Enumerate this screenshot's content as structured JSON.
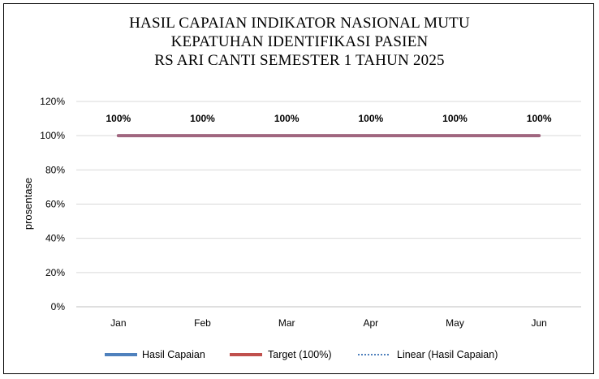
{
  "chart_data": {
    "type": "line",
    "title_lines": [
      "HASIL CAPAIAN INDIKATOR NASIONAL MUTU",
      "KEPATUHAN IDENTIFIKASI PASIEN",
      "RS ARI CANTI SEMESTER 1 TAHUN 2025"
    ],
    "ylabel": "prosentase",
    "xlabel": "",
    "categories": [
      "Jan",
      "Feb",
      "Mar",
      "Apr",
      "May",
      "Jun"
    ],
    "y_ticks": [
      "0%",
      "20%",
      "40%",
      "60%",
      "80%",
      "100%",
      "120%"
    ],
    "ylim": [
      0,
      120
    ],
    "grid": true,
    "legend_position": "bottom",
    "series": [
      {
        "name": "Hasil Capaian",
        "values": [
          100,
          100,
          100,
          100,
          100,
          100
        ],
        "color": "#4F81BD",
        "style": "solid"
      },
      {
        "name": "Target (100%)",
        "values": [
          100,
          100,
          100,
          100,
          100,
          100
        ],
        "color": "#C0504D",
        "style": "solid"
      },
      {
        "name": "Linear (Hasil Capaian)",
        "values": [
          100,
          100,
          100,
          100,
          100,
          100
        ],
        "color": "#4F81BD",
        "style": "dotted"
      }
    ],
    "data_labels": [
      "100%",
      "100%",
      "100%",
      "100%",
      "100%",
      "100%"
    ],
    "combined_line_color": "#A0667F"
  }
}
